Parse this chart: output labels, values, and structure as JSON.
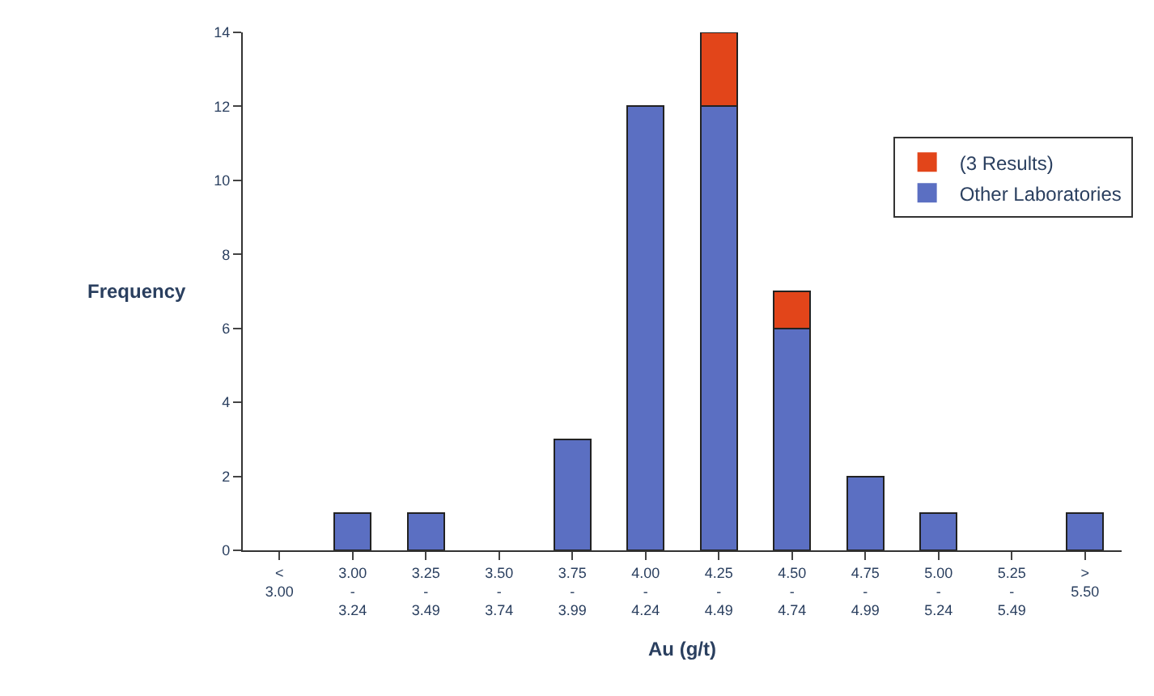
{
  "chart_data": {
    "type": "bar",
    "stacked": true,
    "xlabel": "Au (g/t)",
    "ylabel": "Frequency",
    "categories": [
      "<\n3.00",
      "3.00\n-\n3.24",
      "3.25\n-\n3.49",
      "3.50\n-\n3.74",
      "3.75\n-\n3.99",
      "4.00\n-\n4.24",
      "4.25\n-\n4.49",
      "4.50\n-\n4.74",
      "4.75\n-\n4.99",
      "5.00\n-\n5.24",
      "5.25\n-\n5.49",
      ">\n5.50"
    ],
    "series": [
      {
        "name": "Other Laboratories",
        "color": "#5b6fc2",
        "values": [
          0,
          1,
          1,
          0,
          3,
          12,
          12,
          6,
          2,
          1,
          0,
          1
        ]
      },
      {
        "name": "(3 Results)",
        "color": "#e2451a",
        "values": [
          0,
          0,
          0,
          0,
          0,
          0,
          2,
          1,
          0,
          0,
          0,
          0
        ]
      }
    ],
    "ylim": [
      0,
      14
    ],
    "yticks": [
      0,
      2,
      4,
      6,
      8,
      10,
      12,
      14
    ],
    "legend": "right"
  }
}
